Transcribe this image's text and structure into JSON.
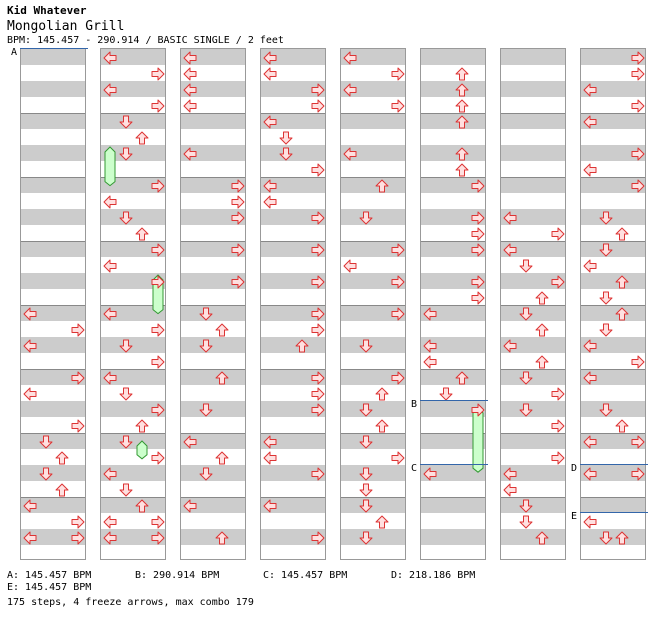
{
  "header": {
    "artist": "Kid Whatever",
    "title": "Mongolian Grill",
    "info": "BPM: 145.457 - 290.914 / BASIC SINGLE / 2 feet"
  },
  "colors": {
    "arrow_fill": "#ffe0e0",
    "arrow_stroke": "#dd3333",
    "freeze_fill": "#ccffcc",
    "freeze_stroke": "#339933",
    "stripe": "#cccccc",
    "bpm_line": "#3366aa"
  },
  "bpm_markers": [
    {
      "label": "A",
      "column": 0,
      "row": 0
    },
    {
      "label": "B",
      "column": 5,
      "row": 22
    },
    {
      "label": "C",
      "column": 5,
      "row": 26
    },
    {
      "label": "D",
      "column": 7,
      "row": 26
    },
    {
      "label": "E",
      "column": 7,
      "row": 29
    }
  ],
  "legend": [
    {
      "text": "A: 145.457 BPM"
    },
    {
      "text": "B: 290.914 BPM"
    },
    {
      "text": "C: 145.457 BPM"
    },
    {
      "text": "D: 218.186 BPM"
    },
    {
      "text": "E: 145.457 BPM"
    }
  ],
  "stats": "175 steps, 4 freeze arrows, max combo 179",
  "columns": [
    [
      {
        "r": 16,
        "d": "L"
      },
      {
        "r": 17,
        "d": "R"
      },
      {
        "r": 18,
        "d": "L"
      },
      {
        "r": 20,
        "d": "R"
      },
      {
        "r": 21,
        "d": "L"
      },
      {
        "r": 23,
        "d": "R"
      },
      {
        "r": 24,
        "d": "D"
      },
      {
        "r": 25,
        "d": "U"
      },
      {
        "r": 26,
        "d": "D"
      },
      {
        "r": 27,
        "d": "U"
      },
      {
        "r": 28,
        "d": "L"
      },
      {
        "r": 29,
        "d": "R"
      },
      {
        "r": 30,
        "d": "L"
      },
      {
        "r": 30,
        "d": "R"
      }
    ],
    [
      {
        "r": 0,
        "d": "L"
      },
      {
        "r": 1,
        "d": "R"
      },
      {
        "r": 2,
        "d": "L"
      },
      {
        "r": 3,
        "d": "R"
      },
      {
        "r": 4,
        "d": "D"
      },
      {
        "r": 5,
        "d": "U"
      },
      {
        "r": 6,
        "d": "D"
      },
      {
        "r": 8,
        "d": "R"
      },
      {
        "r": 9,
        "d": "L"
      },
      {
        "r": 10,
        "d": "D"
      },
      {
        "r": 11,
        "d": "U"
      },
      {
        "r": 12,
        "d": "R"
      },
      {
        "r": 13,
        "d": "L"
      },
      {
        "r": 14,
        "d": "R"
      },
      {
        "r": 16,
        "d": "L"
      },
      {
        "r": 17,
        "d": "R"
      },
      {
        "r": 18,
        "d": "D"
      },
      {
        "r": 19,
        "d": "R"
      },
      {
        "r": 20,
        "d": "L"
      },
      {
        "r": 21,
        "d": "D"
      },
      {
        "r": 22,
        "d": "R"
      },
      {
        "r": 23,
        "d": "U"
      },
      {
        "r": 24,
        "d": "D"
      },
      {
        "r": 25,
        "d": "R"
      },
      {
        "r": 26,
        "d": "L"
      },
      {
        "r": 27,
        "d": "D"
      },
      {
        "r": 28,
        "d": "U"
      },
      {
        "r": 29,
        "d": "L"
      },
      {
        "r": 29,
        "d": "R"
      },
      {
        "r": 30,
        "d": "L"
      },
      {
        "r": 30,
        "d": "R"
      }
    ],
    [
      {
        "r": 0,
        "d": "L"
      },
      {
        "r": 1,
        "d": "L"
      },
      {
        "r": 2,
        "d": "L"
      },
      {
        "r": 3,
        "d": "L"
      },
      {
        "r": 6,
        "d": "L"
      },
      {
        "r": 8,
        "d": "R"
      },
      {
        "r": 9,
        "d": "R"
      },
      {
        "r": 10,
        "d": "R"
      },
      {
        "r": 12,
        "d": "R"
      },
      {
        "r": 14,
        "d": "R"
      },
      {
        "r": 16,
        "d": "D"
      },
      {
        "r": 17,
        "d": "U"
      },
      {
        "r": 18,
        "d": "D"
      },
      {
        "r": 20,
        "d": "U"
      },
      {
        "r": 22,
        "d": "D"
      },
      {
        "r": 24,
        "d": "L"
      },
      {
        "r": 25,
        "d": "U"
      },
      {
        "r": 26,
        "d": "D"
      },
      {
        "r": 28,
        "d": "L"
      },
      {
        "r": 30,
        "d": "U"
      }
    ],
    [
      {
        "r": 0,
        "d": "L"
      },
      {
        "r": 1,
        "d": "L"
      },
      {
        "r": 2,
        "d": "R"
      },
      {
        "r": 3,
        "d": "R"
      },
      {
        "r": 4,
        "d": "L"
      },
      {
        "r": 5,
        "d": "D"
      },
      {
        "r": 6,
        "d": "D"
      },
      {
        "r": 7,
        "d": "R"
      },
      {
        "r": 8,
        "d": "L"
      },
      {
        "r": 9,
        "d": "L"
      },
      {
        "r": 10,
        "d": "R"
      },
      {
        "r": 12,
        "d": "R"
      },
      {
        "r": 14,
        "d": "R"
      },
      {
        "r": 16,
        "d": "R"
      },
      {
        "r": 17,
        "d": "R"
      },
      {
        "r": 18,
        "d": "U"
      },
      {
        "r": 20,
        "d": "R"
      },
      {
        "r": 21,
        "d": "R"
      },
      {
        "r": 22,
        "d": "R"
      },
      {
        "r": 24,
        "d": "L"
      },
      {
        "r": 25,
        "d": "L"
      },
      {
        "r": 26,
        "d": "R"
      },
      {
        "r": 28,
        "d": "L"
      },
      {
        "r": 30,
        "d": "R"
      }
    ],
    [
      {
        "r": 0,
        "d": "L"
      },
      {
        "r": 1,
        "d": "R"
      },
      {
        "r": 2,
        "d": "L"
      },
      {
        "r": 3,
        "d": "R"
      },
      {
        "r": 6,
        "d": "L"
      },
      {
        "r": 8,
        "d": "U"
      },
      {
        "r": 10,
        "d": "D"
      },
      {
        "r": 12,
        "d": "R"
      },
      {
        "r": 13,
        "d": "L"
      },
      {
        "r": 14,
        "d": "R"
      },
      {
        "r": 16,
        "d": "R"
      },
      {
        "r": 18,
        "d": "D"
      },
      {
        "r": 20,
        "d": "R"
      },
      {
        "r": 21,
        "d": "U"
      },
      {
        "r": 22,
        "d": "D"
      },
      {
        "r": 23,
        "d": "U"
      },
      {
        "r": 24,
        "d": "D"
      },
      {
        "r": 25,
        "d": "R"
      },
      {
        "r": 26,
        "d": "D"
      },
      {
        "r": 27,
        "d": "D"
      },
      {
        "r": 28,
        "d": "D"
      },
      {
        "r": 29,
        "d": "U"
      },
      {
        "r": 30,
        "d": "D"
      }
    ],
    [
      {
        "r": 1,
        "d": "U"
      },
      {
        "r": 2,
        "d": "U"
      },
      {
        "r": 3,
        "d": "U"
      },
      {
        "r": 4,
        "d": "U"
      },
      {
        "r": 6,
        "d": "U"
      },
      {
        "r": 7,
        "d": "U"
      },
      {
        "r": 8,
        "d": "R"
      },
      {
        "r": 10,
        "d": "R"
      },
      {
        "r": 11,
        "d": "R"
      },
      {
        "r": 12,
        "d": "R"
      },
      {
        "r": 14,
        "d": "R"
      },
      {
        "r": 15,
        "d": "R"
      },
      {
        "r": 16,
        "d": "L"
      },
      {
        "r": 18,
        "d": "L"
      },
      {
        "r": 19,
        "d": "L"
      },
      {
        "r": 20,
        "d": "U"
      },
      {
        "r": 21,
        "d": "D"
      },
      {
        "r": 22,
        "d": "R"
      },
      {
        "r": 26,
        "d": "L"
      }
    ],
    [
      {
        "r": 10,
        "d": "L"
      },
      {
        "r": 11,
        "d": "R"
      },
      {
        "r": 12,
        "d": "L"
      },
      {
        "r": 13,
        "d": "D"
      },
      {
        "r": 14,
        "d": "R"
      },
      {
        "r": 15,
        "d": "U"
      },
      {
        "r": 16,
        "d": "D"
      },
      {
        "r": 17,
        "d": "U"
      },
      {
        "r": 18,
        "d": "L"
      },
      {
        "r": 19,
        "d": "U"
      },
      {
        "r": 20,
        "d": "D"
      },
      {
        "r": 21,
        "d": "R"
      },
      {
        "r": 22,
        "d": "D"
      },
      {
        "r": 23,
        "d": "R"
      },
      {
        "r": 25,
        "d": "R"
      },
      {
        "r": 26,
        "d": "L"
      },
      {
        "r": 27,
        "d": "L"
      },
      {
        "r": 28,
        "d": "D"
      },
      {
        "r": 29,
        "d": "D"
      },
      {
        "r": 30,
        "d": "U"
      }
    ],
    [
      {
        "r": 0,
        "d": "R"
      },
      {
        "r": 1,
        "d": "R"
      },
      {
        "r": 2,
        "d": "L"
      },
      {
        "r": 3,
        "d": "R"
      },
      {
        "r": 4,
        "d": "L"
      },
      {
        "r": 6,
        "d": "R"
      },
      {
        "r": 7,
        "d": "L"
      },
      {
        "r": 8,
        "d": "R"
      },
      {
        "r": 10,
        "d": "D"
      },
      {
        "r": 11,
        "d": "U"
      },
      {
        "r": 12,
        "d": "D"
      },
      {
        "r": 13,
        "d": "L"
      },
      {
        "r": 14,
        "d": "U"
      },
      {
        "r": 15,
        "d": "D"
      },
      {
        "r": 16,
        "d": "U"
      },
      {
        "r": 17,
        "d": "D"
      },
      {
        "r": 18,
        "d": "L"
      },
      {
        "r": 19,
        "d": "R"
      },
      {
        "r": 20,
        "d": "L"
      },
      {
        "r": 22,
        "d": "D"
      },
      {
        "r": 23,
        "d": "U"
      },
      {
        "r": 24,
        "d": "L"
      },
      {
        "r": 24,
        "d": "R"
      },
      {
        "r": 26,
        "d": "L"
      },
      {
        "r": 26,
        "d": "R"
      },
      {
        "r": 29,
        "d": "L"
      },
      {
        "r": 30,
        "d": "D"
      },
      {
        "r": 30,
        "d": "U"
      }
    ]
  ],
  "freezes": [
    {
      "column": 1,
      "row_start": 6,
      "row_end": 8.6,
      "lane": "L"
    },
    {
      "column": 1,
      "row_start": 14,
      "row_end": 16.6,
      "lane": "R"
    },
    {
      "column": 1,
      "row_start": 24.4,
      "row_end": 25.7,
      "lane": "U"
    },
    {
      "column": 5,
      "row_start": 22.3,
      "row_end": 26.5,
      "lane": "R"
    }
  ]
}
